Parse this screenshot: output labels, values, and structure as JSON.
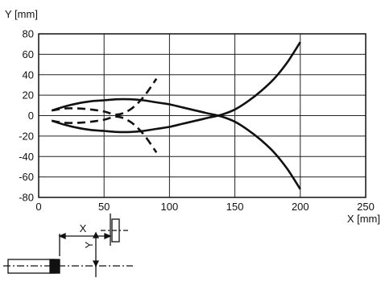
{
  "chart_data": {
    "type": "line",
    "ylabel": "Y [mm]",
    "xlabel": "X [mm]",
    "xlim": [
      0,
      250
    ],
    "ylim": [
      -80,
      80
    ],
    "x_ticks": [
      0,
      50,
      100,
      150,
      200,
      250
    ],
    "y_ticks": [
      80,
      60,
      40,
      20,
      0,
      -20,
      -40,
      -60,
      -80
    ],
    "grid": true,
    "series": [
      {
        "style": "solid",
        "x": [
          10,
          20,
          30,
          40,
          50,
          60,
          70,
          80,
          90,
          100,
          110,
          120,
          130,
          140,
          150,
          160,
          170,
          180,
          190,
          200
        ],
        "y": [
          5,
          9,
          12,
          14,
          15,
          16,
          16,
          15,
          13,
          11,
          8,
          5,
          2,
          -1,
          -6,
          -14,
          -24,
          -36,
          -52,
          -72
        ]
      },
      {
        "style": "solid",
        "x": [
          10,
          20,
          30,
          40,
          50,
          60,
          70,
          80,
          90,
          100,
          110,
          120,
          130,
          140,
          150,
          160,
          170,
          180,
          190,
          200
        ],
        "y": [
          -5,
          -9,
          -12,
          -14,
          -15,
          -16,
          -16,
          -15,
          -13,
          -11,
          -8,
          -5,
          -2,
          1,
          6,
          14,
          24,
          36,
          52,
          72
        ]
      },
      {
        "style": "dashed",
        "x": [
          10,
          20,
          30,
          40,
          50,
          60,
          70,
          80,
          90
        ],
        "y": [
          5,
          7,
          7,
          6,
          4,
          1,
          6,
          18,
          36
        ]
      },
      {
        "style": "dashed",
        "x": [
          10,
          20,
          30,
          40,
          50,
          60,
          70,
          80,
          90
        ],
        "y": [
          -5,
          -7,
          -7,
          -6,
          -4,
          -1,
          -6,
          -18,
          -36
        ]
      }
    ]
  },
  "inset": {
    "x_label": "X",
    "y_label": "Y"
  }
}
